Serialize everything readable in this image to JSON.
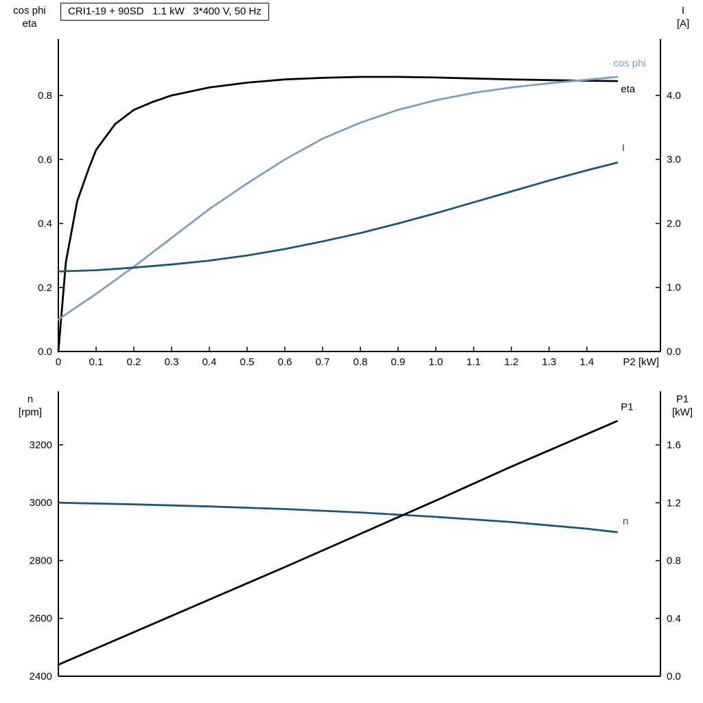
{
  "title_box": "CRI1-19 + 90SD   1.1 kW   3*400 V, 50 Hz",
  "labels": {
    "top_left_1": "cos phi",
    "top_left_2": "eta",
    "top_right_1": "I",
    "top_right_2": "[A]",
    "bottom_left_1": "n",
    "bottom_left_2": "[rpm]",
    "bottom_right_1": "P1",
    "bottom_right_2": "[kW]"
  },
  "colors": {
    "black": "#000000",
    "light_blue": "#7d9fc3",
    "dark_blue": "#1a567f"
  },
  "chart_data": [
    {
      "type": "line",
      "title": "CRI1-19 + 90SD   1.1 kW   3*400 V, 50 Hz",
      "xlabel": "P2 [kW]",
      "xlim": [
        0,
        1.595
      ],
      "x_ticks": {
        "values": [
          0,
          0.1,
          0.2,
          0.3,
          0.4,
          0.5,
          0.6,
          0.7,
          0.8,
          0.9,
          1.0,
          1.1,
          1.2,
          1.3,
          1.4
        ],
        "labels": [
          "0",
          "0.1",
          "0.2",
          "0.3",
          "0.4",
          "0.5",
          "0.6",
          "0.7",
          "0.8",
          "0.9",
          "1.0",
          "1.1",
          "1.2",
          "1.3",
          "1.4"
        ]
      },
      "left_axis": {
        "label": "cos phi / eta",
        "lim": [
          0,
          0.976
        ],
        "ticks": [
          0,
          0.2,
          0.4,
          0.6,
          0.8
        ],
        "tick_labels": [
          "0.0",
          "0.2",
          "0.4",
          "0.6",
          "0.8"
        ]
      },
      "right_axis": {
        "label": "I [A]",
        "lim": [
          0,
          4.879
        ],
        "ticks": [
          0,
          1,
          2,
          3,
          4
        ],
        "tick_labels": [
          "0.0",
          "1.0",
          "2.0",
          "3.0",
          "4.0"
        ]
      },
      "grid": false,
      "series": [
        {
          "name": "eta",
          "axis": "left",
          "color": "black",
          "width": 2.8,
          "points": [
            [
              0,
              0
            ],
            [
              0.02,
              0.28
            ],
            [
              0.05,
              0.47
            ],
            [
              0.08,
              0.57
            ],
            [
              0.1,
              0.63
            ],
            [
              0.15,
              0.71
            ],
            [
              0.2,
              0.755
            ],
            [
              0.25,
              0.78
            ],
            [
              0.3,
              0.8
            ],
            [
              0.4,
              0.825
            ],
            [
              0.5,
              0.84
            ],
            [
              0.6,
              0.85
            ],
            [
              0.7,
              0.855
            ],
            [
              0.8,
              0.858
            ],
            [
              0.9,
              0.858
            ],
            [
              1.0,
              0.856
            ],
            [
              1.1,
              0.853
            ],
            [
              1.2,
              0.85
            ],
            [
              1.3,
              0.848
            ],
            [
              1.4,
              0.846
            ],
            [
              1.48,
              0.845
            ]
          ]
        },
        {
          "name": "cos phi",
          "axis": "left",
          "color": "light_blue",
          "width": 2.8,
          "points": [
            [
              0,
              0.1
            ],
            [
              0.1,
              0.18
            ],
            [
              0.2,
              0.265
            ],
            [
              0.3,
              0.355
            ],
            [
              0.4,
              0.445
            ],
            [
              0.5,
              0.525
            ],
            [
              0.6,
              0.6
            ],
            [
              0.7,
              0.665
            ],
            [
              0.8,
              0.715
            ],
            [
              0.9,
              0.755
            ],
            [
              1.0,
              0.785
            ],
            [
              1.1,
              0.808
            ],
            [
              1.2,
              0.825
            ],
            [
              1.3,
              0.838
            ],
            [
              1.4,
              0.849
            ],
            [
              1.48,
              0.858
            ]
          ]
        },
        {
          "name": "I",
          "axis": "right",
          "color": "dark_blue",
          "width": 2.8,
          "points": [
            [
              0,
              1.25
            ],
            [
              0.1,
              1.27
            ],
            [
              0.2,
              1.31
            ],
            [
              0.3,
              1.36
            ],
            [
              0.4,
              1.42
            ],
            [
              0.5,
              1.5
            ],
            [
              0.6,
              1.6
            ],
            [
              0.7,
              1.72
            ],
            [
              0.8,
              1.85
            ],
            [
              0.9,
              2.0
            ],
            [
              1.0,
              2.16
            ],
            [
              1.1,
              2.33
            ],
            [
              1.2,
              2.5
            ],
            [
              1.3,
              2.67
            ],
            [
              1.4,
              2.83
            ],
            [
              1.48,
              2.95
            ]
          ]
        }
      ],
      "annotations": [
        {
          "text": "cos phi",
          "x": 1.47,
          "value": 0.89,
          "axis": "left",
          "color": "light_blue"
        },
        {
          "text": "eta",
          "x": 1.49,
          "value": 0.81,
          "axis": "left",
          "color": "black"
        },
        {
          "text": "I",
          "x": 1.493,
          "value": 3.13,
          "axis": "right",
          "color": "dark_blue"
        }
      ]
    },
    {
      "type": "line",
      "title": "",
      "xlabel": "",
      "xlim": [
        0,
        1.595
      ],
      "x_ticks": {
        "values": [],
        "labels": []
      },
      "left_axis": {
        "label": "n [rpm]",
        "lim": [
          2400,
          3385
        ],
        "ticks": [
          2400,
          2600,
          2800,
          3000,
          3200
        ],
        "tick_labels": [
          "2400",
          "2600",
          "2800",
          "3000",
          "3200"
        ]
      },
      "right_axis": {
        "label": "P1 [kW]",
        "lim": [
          0,
          1.971
        ],
        "ticks": [
          0,
          0.4,
          0.8,
          1.2,
          1.6
        ],
        "tick_labels": [
          "0.0",
          "0.4",
          "0.8",
          "1.2",
          "1.6"
        ]
      },
      "grid": false,
      "series": [
        {
          "name": "n",
          "axis": "left",
          "color": "dark_blue",
          "width": 2.8,
          "points": [
            [
              0,
              3000
            ],
            [
              0.2,
              2994
            ],
            [
              0.4,
              2987
            ],
            [
              0.6,
              2978
            ],
            [
              0.8,
              2966
            ],
            [
              1.0,
              2951
            ],
            [
              1.2,
              2933
            ],
            [
              1.4,
              2910
            ],
            [
              1.48,
              2898
            ]
          ]
        },
        {
          "name": "P1",
          "axis": "right",
          "color": "black",
          "width": 2.8,
          "points": [
            [
              0,
              0.08
            ],
            [
              0.2,
              0.305
            ],
            [
              0.4,
              0.53
            ],
            [
              0.6,
              0.755
            ],
            [
              0.8,
              0.985
            ],
            [
              1.0,
              1.215
            ],
            [
              1.2,
              1.45
            ],
            [
              1.4,
              1.675
            ],
            [
              1.48,
              1.765
            ]
          ]
        }
      ],
      "annotations": [
        {
          "text": "P1",
          "x": 1.49,
          "value": 1.84,
          "axis": "right",
          "color": "black"
        },
        {
          "text": "n",
          "x": 1.495,
          "value": 2925,
          "axis": "left",
          "color": "dark_blue"
        }
      ]
    }
  ]
}
